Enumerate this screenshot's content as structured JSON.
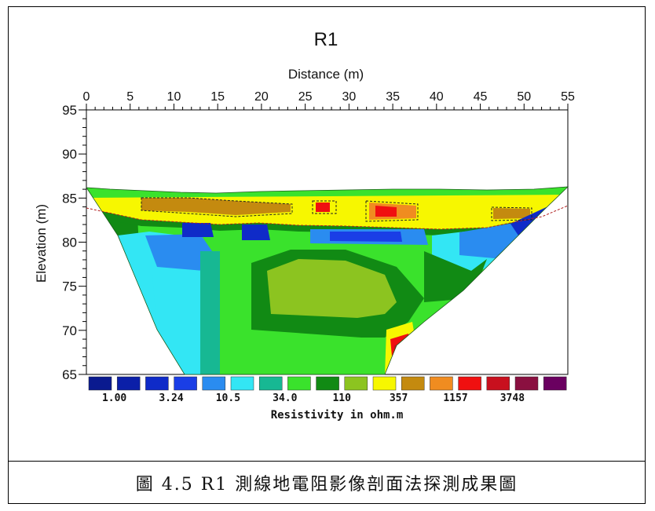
{
  "chart_data": {
    "type": "heatmap",
    "title": "R1",
    "xlabel": "Distance (m)",
    "ylabel": "Elevation (m)",
    "xlim": [
      0,
      55
    ],
    "ylim": [
      65,
      95
    ],
    "x_ticks": [
      0,
      5,
      10,
      15,
      20,
      25,
      30,
      35,
      40,
      45,
      50,
      55
    ],
    "y_ticks": [
      95,
      90,
      85,
      80,
      75,
      70,
      65
    ],
    "colorbar": {
      "label": "Resistivity in ohm.m",
      "tick_labels": [
        "1.00",
        "3.24",
        "10.5",
        "34.0",
        "110",
        "357",
        "1157",
        "3748"
      ],
      "colors": [
        "#0a1a8f",
        "#0b1fa8",
        "#0f2bc8",
        "#1a3ee6",
        "#2a8cf0",
        "#33e6f4",
        "#17b893",
        "#3ae22c",
        "#118a14",
        "#8cc420",
        "#f7f700",
        "#c48a0f",
        "#f08c20",
        "#f01010",
        "#c8101e",
        "#8a1040",
        "#6a0060"
      ]
    },
    "surface": {
      "x": [
        0,
        5,
        10,
        15,
        20,
        25,
        30,
        35,
        40,
        45,
        50,
        55
      ],
      "elevation": [
        86.2,
        86.0,
        85.7,
        85.6,
        85.8,
        85.9,
        86.0,
        86.1,
        86.1,
        86.0,
        86.0,
        86.2
      ]
    },
    "section_bottom_left": {
      "x": [
        0,
        5,
        10,
        11.5
      ],
      "elevation": [
        86.2,
        80,
        70,
        65
      ]
    },
    "section_bottom_right": {
      "x": [
        34,
        38,
        44,
        50,
        55
      ],
      "elevation": [
        65,
        72,
        75,
        80,
        86.2
      ]
    }
  },
  "caption": "圖 4.5 R1 測線地電阻影像剖面法探測成果圖"
}
